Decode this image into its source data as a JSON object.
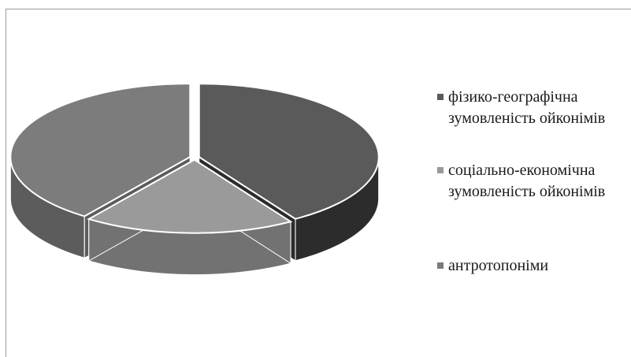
{
  "chart_data": {
    "type": "pie",
    "style": "3d",
    "grid": false,
    "legend_position": "right",
    "slices": [
      {
        "label": "фізико-географічна зумовленість ойконімів",
        "value": 0.41,
        "color": "#5a5a5a",
        "side_color": "#2c2c2c"
      },
      {
        "label": "соціально-економічна зумовленість ойконімів",
        "value": 0.19,
        "color": "#9a9a9a",
        "side_color": "#727272"
      },
      {
        "label": "антротопоніми",
        "value": 0.4,
        "color": "#7c7c7c",
        "side_color": "#5c5c5c"
      }
    ]
  }
}
